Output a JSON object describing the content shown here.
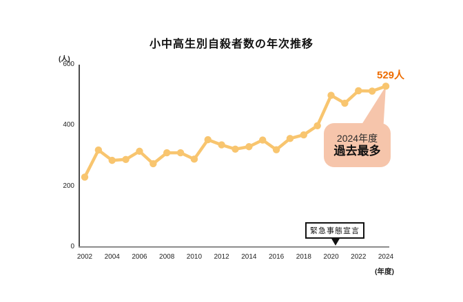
{
  "page": {
    "background": "#ffffff"
  },
  "chart_data": {
    "type": "line",
    "title": "小中高生別自殺者数の年次推移",
    "y_unit_label": "(人)",
    "x_unit_label": "(年度)",
    "x": [
      2002,
      2003,
      2004,
      2005,
      2006,
      2007,
      2008,
      2009,
      2010,
      2011,
      2012,
      2013,
      2014,
      2015,
      2016,
      2017,
      2018,
      2019,
      2020,
      2021,
      2022,
      2023,
      2024
    ],
    "values": [
      230,
      319,
      285,
      288,
      315,
      274,
      310,
      310,
      289,
      353,
      336,
      322,
      330,
      352,
      320,
      357,
      369,
      399,
      499,
      473,
      514,
      513,
      529
    ],
    "ylim": [
      0,
      600
    ],
    "y_ticks": [
      0,
      200,
      400,
      600
    ],
    "x_tick_step": 2,
    "grid": false,
    "legend_position": "none",
    "annotations": {
      "peak_value_label": "529人",
      "callout_line1": "2024年度",
      "callout_line2": "過去最多",
      "event_label": "緊急事態宣言"
    },
    "colors": {
      "line": "#f8c56f",
      "peak_label": "#ed6c00",
      "callout_bg": "#f6c5ab",
      "y_axis": "#4a4a4a",
      "x_axis": "#8c8c8c",
      "text": "#1a1a1a"
    }
  }
}
